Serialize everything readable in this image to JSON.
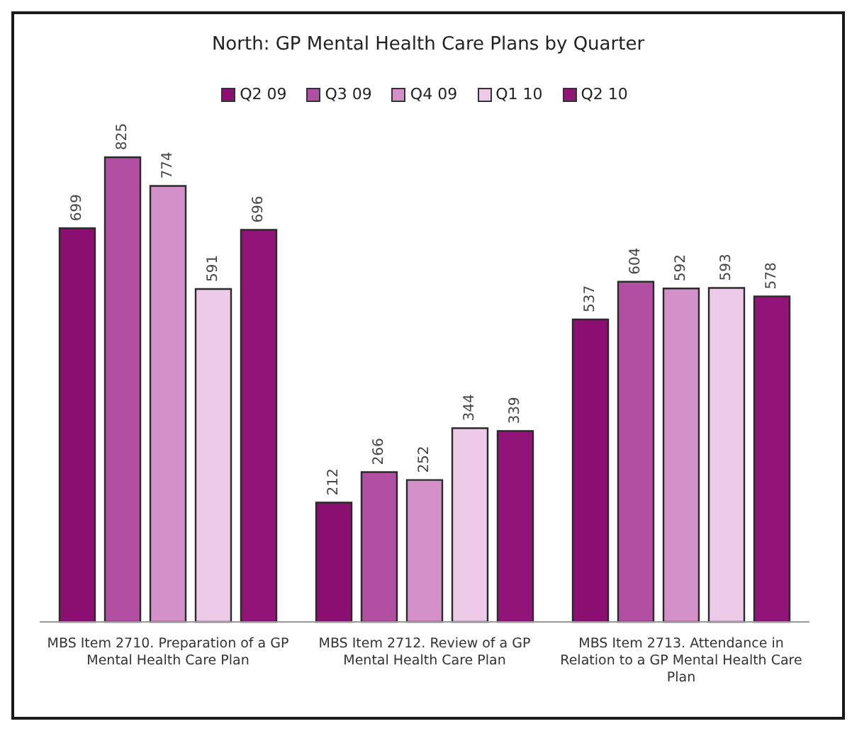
{
  "chart_data": {
    "type": "bar",
    "title": "North: GP Mental Health Care Plans by Quarter",
    "categories": [
      "MBS Item 2710. Preparation of a GP Mental Health Care Plan",
      "MBS Item 2712. Review of a GP Mental Health Care Plan",
      "MBS Item 2713. Attendance in Relation to a GP Mental Health Care Plan"
    ],
    "series": [
      {
        "name": "Q2 09",
        "color": "#8c0f72",
        "values": [
          699,
          212,
          537
        ]
      },
      {
        "name": "Q3 09",
        "color": "#b24fa2",
        "values": [
          825,
          266,
          604
        ]
      },
      {
        "name": "Q4 09",
        "color": "#d490c8",
        "values": [
          774,
          252,
          592
        ]
      },
      {
        "name": "Q1 10",
        "color": "#edcbe8",
        "values": [
          591,
          344,
          593
        ]
      },
      {
        "name": "Q2 10",
        "color": "#921479",
        "values": [
          696,
          339,
          578
        ]
      }
    ],
    "data_labels": true,
    "legend": "top",
    "grid": false
  }
}
